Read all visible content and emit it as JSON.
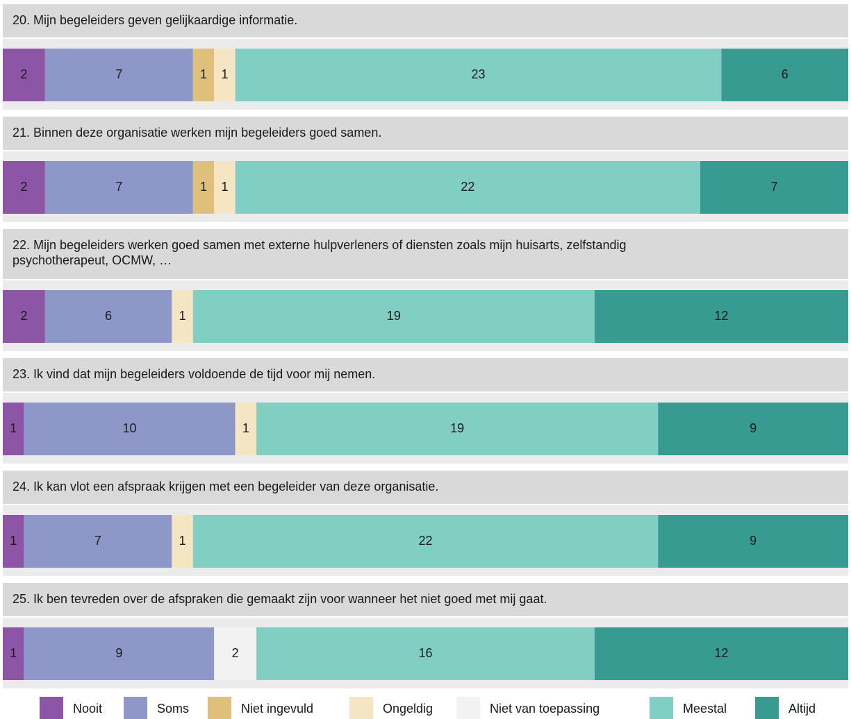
{
  "chart_data": {
    "type": "stacked-bar",
    "categories": [
      "20. Mijn begeleiders geven gelijkaardige informatie.",
      "21. Binnen deze organisatie werken mijn begeleiders goed samen.",
      [
        "22. Mijn begeleiders werken goed samen met externe hulpverleners of diensten zoals mijn huisarts, zelfstandig",
        "psychotherapeut, OCMW, …"
      ],
      "23. Ik vind dat mijn begeleiders voldoende de tijd voor mij nemen.",
      "24. Ik kan vlot een afspraak krijgen met een begeleider van deze organisatie.",
      "25. Ik ben tevreden over de afspraken die gemaakt zijn voor wanneer het niet goed met mij gaat."
    ],
    "series": [
      {
        "name": "Nooit",
        "color": "#8c55a6",
        "values": [
          2,
          2,
          2,
          1,
          1,
          1
        ]
      },
      {
        "name": "Soms",
        "color": "#8e98c8",
        "values": [
          7,
          7,
          6,
          10,
          7,
          9
        ]
      },
      {
        "name": "Niet ingevuld",
        "color": "#dfc07a",
        "values": [
          1,
          1,
          null,
          null,
          null,
          null
        ]
      },
      {
        "name": "Ongeldig",
        "color": "#f5e6c3",
        "values": [
          1,
          1,
          1,
          1,
          1,
          null
        ]
      },
      {
        "name": "Niet van toepassing",
        "color": "#f2f2f2",
        "values": [
          null,
          null,
          null,
          null,
          null,
          2
        ]
      },
      {
        "name": "Meestal",
        "color": "#80cfc2",
        "values": [
          23,
          22,
          19,
          19,
          22,
          16
        ]
      },
      {
        "name": "Altijd",
        "color": "#379b91",
        "values": [
          6,
          7,
          12,
          9,
          9,
          12
        ]
      }
    ],
    "xlim": [
      0,
      40
    ],
    "legend": "bottom"
  }
}
